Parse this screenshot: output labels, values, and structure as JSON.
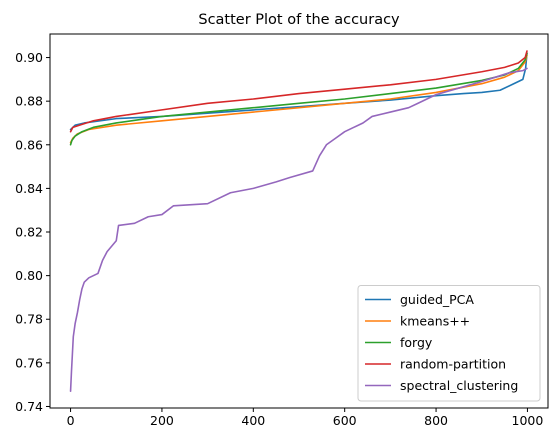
{
  "chart_data": {
    "type": "line",
    "title": "Scatter Plot of the accuracy",
    "xlabel": "",
    "ylabel": "",
    "xlim": [
      -45,
      1045
    ],
    "ylim": [
      0.7393,
      0.9108
    ],
    "xticks": [
      0,
      200,
      400,
      600,
      800,
      1000
    ],
    "yticks": [
      0.74,
      0.76,
      0.78,
      0.8,
      0.82,
      0.84,
      0.86,
      0.88,
      0.9
    ],
    "ytick_labels": [
      "0.74",
      "0.76",
      "0.78",
      "0.80",
      "0.82",
      "0.84",
      "0.86",
      "0.88",
      "0.90"
    ],
    "grid": false,
    "legend_position": "lower-right",
    "series": [
      {
        "name": "guided_PCA",
        "color": "#1f77b4",
        "points": [
          [
            0,
            0.867
          ],
          [
            10,
            0.869
          ],
          [
            30,
            0.87
          ],
          [
            100,
            0.872
          ],
          [
            200,
            0.873
          ],
          [
            300,
            0.8745
          ],
          [
            400,
            0.876
          ],
          [
            500,
            0.8775
          ],
          [
            600,
            0.879
          ],
          [
            700,
            0.8805
          ],
          [
            800,
            0.8825
          ],
          [
            860,
            0.8835
          ],
          [
            900,
            0.884
          ],
          [
            940,
            0.885
          ],
          [
            970,
            0.888
          ],
          [
            990,
            0.89
          ],
          [
            996,
            0.895
          ],
          [
            999,
            0.902
          ]
        ]
      },
      {
        "name": "kmeans++",
        "color": "#ff7f0e",
        "points": [
          [
            0,
            0.861
          ],
          [
            5,
            0.863
          ],
          [
            15,
            0.865
          ],
          [
            40,
            0.867
          ],
          [
            100,
            0.869
          ],
          [
            200,
            0.871
          ],
          [
            300,
            0.873
          ],
          [
            400,
            0.875
          ],
          [
            500,
            0.877
          ],
          [
            600,
            0.879
          ],
          [
            700,
            0.881
          ],
          [
            800,
            0.884
          ],
          [
            900,
            0.888
          ],
          [
            950,
            0.891
          ],
          [
            980,
            0.894
          ],
          [
            995,
            0.898
          ],
          [
            999,
            0.901
          ]
        ]
      },
      {
        "name": "forgy",
        "color": "#2ca02c",
        "points": [
          [
            0,
            0.86
          ],
          [
            3,
            0.862
          ],
          [
            10,
            0.864
          ],
          [
            25,
            0.866
          ],
          [
            50,
            0.868
          ],
          [
            100,
            0.87
          ],
          [
            200,
            0.873
          ],
          [
            300,
            0.875
          ],
          [
            400,
            0.877
          ],
          [
            500,
            0.879
          ],
          [
            600,
            0.881
          ],
          [
            700,
            0.8835
          ],
          [
            800,
            0.886
          ],
          [
            900,
            0.8895
          ],
          [
            950,
            0.892
          ],
          [
            980,
            0.895
          ],
          [
            995,
            0.899
          ],
          [
            999,
            0.902
          ]
        ]
      },
      {
        "name": "random-partition",
        "color": "#d62728",
        "points": [
          [
            0,
            0.866
          ],
          [
            5,
            0.868
          ],
          [
            20,
            0.869
          ],
          [
            50,
            0.871
          ],
          [
            100,
            0.873
          ],
          [
            200,
            0.876
          ],
          [
            300,
            0.879
          ],
          [
            400,
            0.881
          ],
          [
            500,
            0.8835
          ],
          [
            600,
            0.8855
          ],
          [
            700,
            0.8875
          ],
          [
            800,
            0.89
          ],
          [
            900,
            0.8935
          ],
          [
            950,
            0.8955
          ],
          [
            980,
            0.8975
          ],
          [
            995,
            0.9
          ],
          [
            999,
            0.903
          ]
        ]
      },
      {
        "name": "spectral_clustering",
        "color": "#9467bd",
        "points": [
          [
            0,
            0.747
          ],
          [
            2,
            0.756
          ],
          [
            4,
            0.764
          ],
          [
            6,
            0.772
          ],
          [
            10,
            0.778
          ],
          [
            15,
            0.783
          ],
          [
            20,
            0.789
          ],
          [
            25,
            0.794
          ],
          [
            30,
            0.797
          ],
          [
            40,
            0.799
          ],
          [
            60,
            0.801
          ],
          [
            70,
            0.807
          ],
          [
            80,
            0.811
          ],
          [
            100,
            0.816
          ],
          [
            105,
            0.823
          ],
          [
            140,
            0.824
          ],
          [
            170,
            0.827
          ],
          [
            200,
            0.828
          ],
          [
            225,
            0.832
          ],
          [
            300,
            0.833
          ],
          [
            350,
            0.838
          ],
          [
            400,
            0.84
          ],
          [
            450,
            0.843
          ],
          [
            480,
            0.845
          ],
          [
            530,
            0.848
          ],
          [
            545,
            0.855
          ],
          [
            560,
            0.86
          ],
          [
            580,
            0.863
          ],
          [
            600,
            0.866
          ],
          [
            620,
            0.868
          ],
          [
            640,
            0.87
          ],
          [
            660,
            0.873
          ],
          [
            700,
            0.875
          ],
          [
            740,
            0.877
          ],
          [
            760,
            0.879
          ],
          [
            800,
            0.883
          ],
          [
            850,
            0.886
          ],
          [
            900,
            0.889
          ],
          [
            930,
            0.891
          ],
          [
            960,
            0.893
          ],
          [
            990,
            0.894
          ],
          [
            999,
            0.895
          ]
        ]
      }
    ]
  }
}
